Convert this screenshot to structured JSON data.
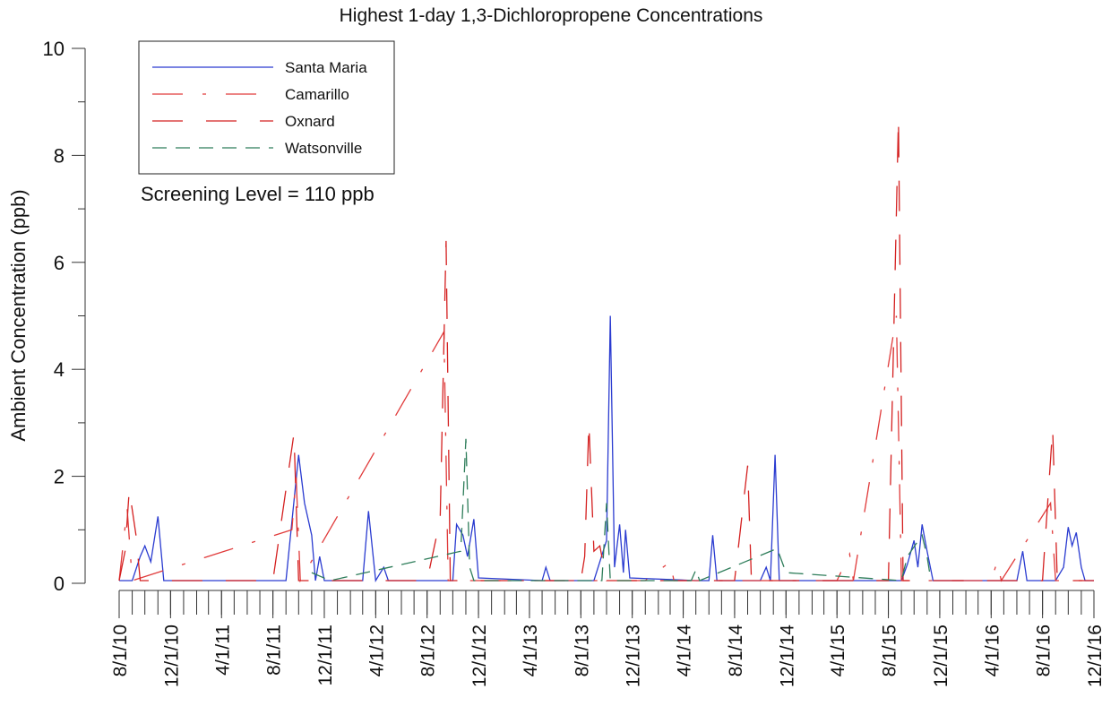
{
  "chart_data": {
    "type": "line",
    "title": "Highest 1-day 1,3-Dichloropropene Concentrations",
    "y_label": "Ambient Concentration (ppb)",
    "annotation": "Screening Level = 110 ppb",
    "xlim": [
      "2010-08-01",
      "2016-12-01"
    ],
    "xticks": [
      {
        "value": "2010-08-01",
        "label": "8/1/10"
      },
      {
        "value": "2010-12-01",
        "label": "12/1/10"
      },
      {
        "value": "2011-04-01",
        "label": "4/1/11"
      },
      {
        "value": "2011-08-01",
        "label": "8/1/11"
      },
      {
        "value": "2011-12-01",
        "label": "12/1/11"
      },
      {
        "value": "2012-04-01",
        "label": "4/1/12"
      },
      {
        "value": "2012-08-01",
        "label": "8/1/12"
      },
      {
        "value": "2012-12-01",
        "label": "12/1/12"
      },
      {
        "value": "2013-04-01",
        "label": "4/1/13"
      },
      {
        "value": "2013-08-01",
        "label": "8/1/13"
      },
      {
        "value": "2013-12-01",
        "label": "12/1/13"
      },
      {
        "value": "2014-04-01",
        "label": "4/1/14"
      },
      {
        "value": "2014-08-01",
        "label": "8/1/14"
      },
      {
        "value": "2014-12-01",
        "label": "12/1/14"
      },
      {
        "value": "2015-04-01",
        "label": "4/1/15"
      },
      {
        "value": "2015-08-01",
        "label": "8/1/15"
      },
      {
        "value": "2015-12-01",
        "label": "12/1/15"
      },
      {
        "value": "2016-04-01",
        "label": "4/1/16"
      },
      {
        "value": "2016-08-01",
        "label": "8/1/16"
      },
      {
        "value": "2016-12-01",
        "label": "12/1/16"
      }
    ],
    "ylim": [
      0,
      10
    ],
    "yticks": [
      0,
      2,
      4,
      6,
      8,
      10
    ],
    "legend": "top-left",
    "series": [
      {
        "name": "Santa Maria",
        "color": "#2a3bd0",
        "dash": "solid",
        "x": [
          "2010-08-01",
          "2010-09-01",
          "2010-09-20",
          "2010-10-01",
          "2010-10-15",
          "2010-11-01",
          "2010-11-15",
          "2011-09-01",
          "2011-10-01",
          "2011-10-15",
          "2011-11-01",
          "2011-11-10",
          "2011-11-20",
          "2011-12-01",
          "2012-03-01",
          "2012-03-15",
          "2012-04-01",
          "2012-04-20",
          "2012-05-01",
          "2012-10-01",
          "2012-10-10",
          "2012-10-25",
          "2012-11-05",
          "2012-11-20",
          "2012-12-01",
          "2013-05-01",
          "2013-05-10",
          "2013-05-20",
          "2013-09-01",
          "2013-10-01",
          "2013-10-10",
          "2013-10-20",
          "2013-11-01",
          "2013-11-10",
          "2013-11-15",
          "2013-11-25",
          "2014-05-01",
          "2014-06-01",
          "2014-06-10",
          "2014-06-20",
          "2014-10-01",
          "2014-10-15",
          "2014-10-25",
          "2014-11-05",
          "2014-11-15",
          "2015-09-01",
          "2015-09-15",
          "2015-10-01",
          "2015-10-10",
          "2015-10-20",
          "2015-11-01",
          "2015-11-15",
          "2016-06-01",
          "2016-06-15",
          "2016-06-25",
          "2016-09-01",
          "2016-09-20",
          "2016-10-01",
          "2016-10-10",
          "2016-10-20",
          "2016-11-01",
          "2016-11-10",
          "2016-12-01"
        ],
        "values": [
          0.05,
          0.05,
          0.5,
          0.7,
          0.4,
          1.25,
          0.05,
          0.05,
          2.4,
          1.5,
          0.9,
          0.05,
          0.5,
          0.05,
          0.05,
          1.35,
          0.05,
          0.3,
          0.05,
          0.05,
          1.1,
          0.9,
          0.5,
          1.2,
          0.1,
          0.05,
          0.3,
          0.05,
          0.05,
          0.8,
          5.0,
          0.3,
          1.1,
          0.2,
          1.0,
          0.1,
          0.05,
          0.05,
          0.9,
          0.05,
          0.05,
          0.3,
          0.05,
          2.4,
          0.05,
          0.05,
          0.35,
          0.8,
          0.3,
          1.1,
          0.6,
          0.05,
          0.05,
          0.6,
          0.05,
          0.05,
          0.3,
          1.05,
          0.7,
          0.95,
          0.3,
          0.05,
          0.05
        ]
      },
      {
        "name": "Camarillo",
        "color": "#e03a3a",
        "dash": "dashdot",
        "x": [
          "2010-08-01",
          "2010-08-20",
          "2010-09-01",
          "2011-09-15",
          "2011-09-25",
          "2011-10-05",
          "2012-09-10",
          "2012-09-20",
          "2014-01-01",
          "2014-03-01",
          "2014-03-10",
          "2015-04-01",
          "2015-05-01",
          "2015-05-10",
          "2015-08-20",
          "2015-09-01",
          "2016-04-01",
          "2016-04-15",
          "2016-04-25",
          "2016-08-20",
          "2016-09-01",
          "2016-12-01"
        ],
        "values": [
          0.05,
          1.4,
          0.05,
          1.0,
          2.0,
          0.05,
          4.7,
          0.05,
          0.05,
          0.4,
          0.05,
          0.05,
          0.55,
          0.05,
          5.0,
          0.05,
          0.05,
          0.4,
          0.05,
          1.5,
          0.05,
          0.05
        ]
      },
      {
        "name": "Oxnard",
        "color": "#d42020",
        "dash": "dash",
        "x": [
          "2010-08-01",
          "2010-08-15",
          "2010-08-25",
          "2010-09-10",
          "2010-09-20",
          "2011-08-01",
          "2011-09-20",
          "2011-10-01",
          "2012-08-01",
          "2012-09-01",
          "2012-09-15",
          "2012-09-25",
          "2013-08-01",
          "2013-08-10",
          "2013-08-20",
          "2013-09-01",
          "2013-09-15",
          "2013-10-01",
          "2014-08-01",
          "2014-09-01",
          "2014-09-10",
          "2015-08-01",
          "2015-08-25",
          "2015-09-05",
          "2016-08-01",
          "2016-08-25",
          "2016-09-05",
          "2016-12-01"
        ],
        "values": [
          0.05,
          0.6,
          1.75,
          0.9,
          0.05,
          0.05,
          2.8,
          0.05,
          0.05,
          1.2,
          6.4,
          0.05,
          0.05,
          0.5,
          3.0,
          0.6,
          0.7,
          0.05,
          0.05,
          2.2,
          0.05,
          0.05,
          8.7,
          0.05,
          0.05,
          2.9,
          0.05,
          0.05
        ]
      },
      {
        "name": "Watsonville",
        "color": "#2e7d5a",
        "dash": "shortdash",
        "x": [
          "2011-11-01",
          "2011-12-15",
          "2012-10-20",
          "2012-11-01",
          "2012-11-10",
          "2012-11-20",
          "2013-09-20",
          "2013-10-01",
          "2013-10-10",
          "2014-04-20",
          "2014-05-01",
          "2014-05-10",
          "2014-11-10",
          "2014-12-01",
          "2015-09-01",
          "2015-09-15",
          "2015-10-20",
          "2015-11-01",
          "2015-11-10"
        ],
        "values": [
          0.2,
          0.05,
          0.6,
          2.7,
          0.3,
          0.05,
          0.05,
          1.5,
          0.05,
          0.05,
          0.25,
          0.05,
          0.65,
          0.2,
          0.05,
          0.5,
          0.9,
          0.5,
          0.05
        ]
      }
    ]
  }
}
